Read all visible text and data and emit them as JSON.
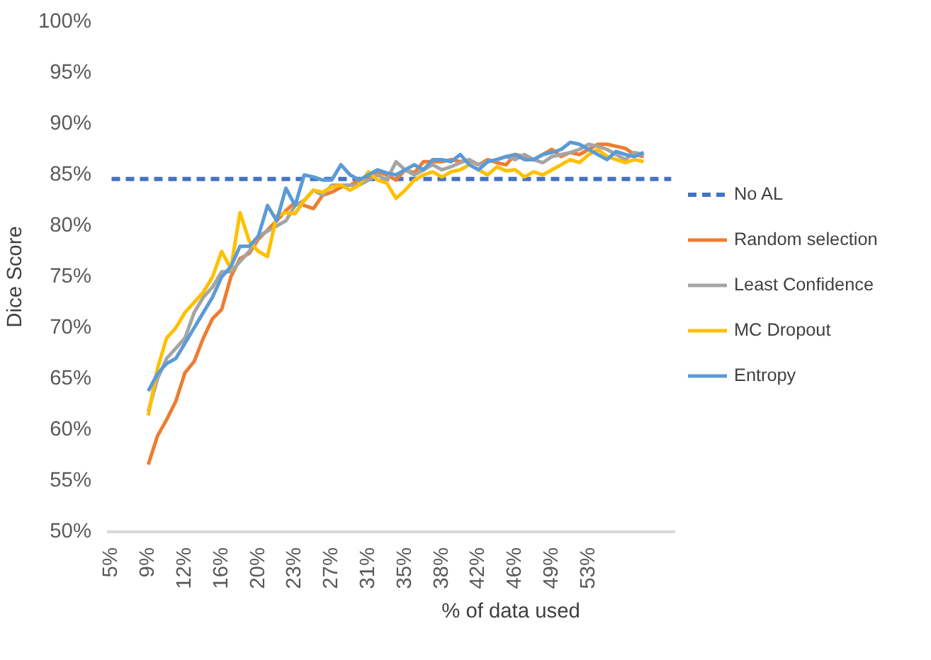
{
  "chart_data": {
    "type": "line",
    "xlabel": "% of data used",
    "ylabel": "Dice Score",
    "categories": [
      "5%",
      null,
      null,
      null,
      "9%",
      null,
      null,
      null,
      "12%",
      null,
      null,
      null,
      "16%",
      null,
      null,
      null,
      "20%",
      null,
      null,
      null,
      "23%",
      null,
      null,
      null,
      "27%",
      null,
      null,
      null,
      "31%",
      null,
      null,
      null,
      "35%",
      null,
      null,
      null,
      "38%",
      null,
      null,
      null,
      "42%",
      null,
      null,
      null,
      "46%",
      null,
      null,
      null,
      "49%",
      null,
      null,
      null,
      "53%",
      null,
      null,
      null,
      null,
      null,
      null,
      null,
      null,
      null
    ],
    "ylim": [
      50,
      100
    ],
    "yticks": [
      {
        "value": 50,
        "label": "50%"
      },
      {
        "value": 55,
        "label": "55%"
      },
      {
        "value": 60,
        "label": "60%"
      },
      {
        "value": 65,
        "label": "65%"
      },
      {
        "value": 70,
        "label": "70%"
      },
      {
        "value": 75,
        "label": "75%"
      },
      {
        "value": 80,
        "label": "80%"
      },
      {
        "value": 85,
        "label": "85%"
      },
      {
        "value": 90,
        "label": "90%"
      },
      {
        "value": 95,
        "label": "95%"
      },
      {
        "value": 100,
        "label": "100%"
      }
    ],
    "grid": false,
    "legend": "right",
    "marker": "none",
    "series": [
      {
        "name": "No AL",
        "color": "#4472c4",
        "line_style": "dashed",
        "values": [
          84.6,
          84.6,
          84.6,
          84.6,
          84.6,
          84.6,
          84.6,
          84.6,
          84.6,
          84.6,
          84.6,
          84.6,
          84.6,
          84.6,
          84.6,
          84.6,
          84.6,
          84.6,
          84.6,
          84.6,
          84.6,
          84.6,
          84.6,
          84.6,
          84.6,
          84.6,
          84.6,
          84.6,
          84.6,
          84.6,
          84.6,
          84.6,
          84.6,
          84.6,
          84.6,
          84.6,
          84.6,
          84.6,
          84.6,
          84.6,
          84.6,
          84.6,
          84.6,
          84.6,
          84.6,
          84.6,
          84.6,
          84.6,
          84.6,
          84.6,
          84.6,
          84.6,
          84.6,
          84.6,
          84.6,
          84.6,
          84.6,
          84.6,
          84.6,
          84.6,
          84.6,
          84.6
        ]
      },
      {
        "name": "Random selection",
        "color": "#ed7d31",
        "line_style": "solid",
        "values": [
          null,
          null,
          null,
          null,
          56.6,
          59.4,
          61.0,
          62.8,
          65.6,
          66.7,
          69.0,
          70.9,
          71.8,
          75.0,
          76.8,
          77.3,
          78.7,
          79.6,
          80.5,
          81.5,
          82.3,
          82.0,
          81.7,
          83.0,
          83.3,
          83.8,
          84.0,
          84.5,
          84.8,
          85.3,
          85.0,
          84.5,
          85.5,
          85.2,
          86.3,
          86.3,
          86.3,
          86.5,
          86.3,
          86.4,
          86.0,
          86.5,
          86.2,
          86.0,
          87.0,
          86.8,
          86.5,
          87.0,
          87.5,
          86.8,
          87.2,
          87.0,
          87.5,
          88.0,
          88.0,
          87.8,
          87.6,
          87.0,
          86.8,
          null,
          null,
          null
        ]
      },
      {
        "name": "Least Confidence",
        "color": "#a5a5a5",
        "line_style": "solid",
        "values": [
          null,
          null,
          null,
          null,
          61.8,
          65.0,
          67.0,
          68.0,
          69.0,
          71.5,
          73.0,
          74.0,
          75.5,
          75.5,
          76.5,
          77.5,
          79.0,
          79.5,
          80.0,
          80.5,
          82.0,
          82.5,
          83.5,
          83.0,
          84.0,
          84.0,
          84.0,
          84.0,
          84.5,
          85.0,
          84.5,
          86.3,
          85.5,
          85.0,
          85.5,
          86.0,
          85.5,
          85.8,
          86.2,
          86.5,
          86.0,
          86.3,
          86.5,
          86.8,
          86.5,
          87.0,
          86.5,
          86.2,
          86.8,
          87.0,
          87.2,
          87.5,
          88.0,
          87.8,
          87.5,
          87.0,
          86.5,
          87.2,
          87.0,
          null,
          null,
          null
        ]
      },
      {
        "name": "MC Dropout",
        "color": "#ffc000",
        "line_style": "solid",
        "values": [
          null,
          null,
          null,
          null,
          61.4,
          66.0,
          69.0,
          70.0,
          71.5,
          72.5,
          73.5,
          75.0,
          77.5,
          75.8,
          81.3,
          78.5,
          77.5,
          77.0,
          81.0,
          81.3,
          81.2,
          82.5,
          83.5,
          83.3,
          83.8,
          84.0,
          83.5,
          84.0,
          85.3,
          84.5,
          84.2,
          82.7,
          83.5,
          84.5,
          85.0,
          85.3,
          84.8,
          85.3,
          85.5,
          86.0,
          85.5,
          85.0,
          85.8,
          85.4,
          85.5,
          84.8,
          85.3,
          85.0,
          85.5,
          86.0,
          86.5,
          86.2,
          87.0,
          87.5,
          86.8,
          86.5,
          86.2,
          86.5,
          86.3,
          null,
          null,
          null
        ]
      },
      {
        "name": "Entropy",
        "color": "#5b9bd5",
        "line_style": "solid",
        "values": [
          null,
          null,
          null,
          null,
          63.8,
          65.5,
          66.5,
          67.0,
          68.5,
          70.0,
          71.5,
          73.0,
          75.0,
          76.0,
          78.0,
          78.0,
          79.0,
          82.0,
          80.5,
          83.7,
          82.0,
          85.0,
          84.8,
          84.5,
          84.5,
          86.0,
          85.0,
          84.5,
          85.0,
          85.5,
          85.2,
          85.0,
          85.5,
          86.0,
          85.5,
          86.5,
          86.5,
          86.3,
          87.0,
          86.0,
          85.5,
          86.3,
          86.5,
          86.8,
          87.0,
          86.5,
          86.5,
          87.0,
          87.2,
          87.5,
          88.2,
          88.0,
          87.5,
          87.0,
          86.5,
          87.3,
          87.0,
          86.8,
          87.2,
          null,
          null,
          null
        ]
      }
    ]
  }
}
